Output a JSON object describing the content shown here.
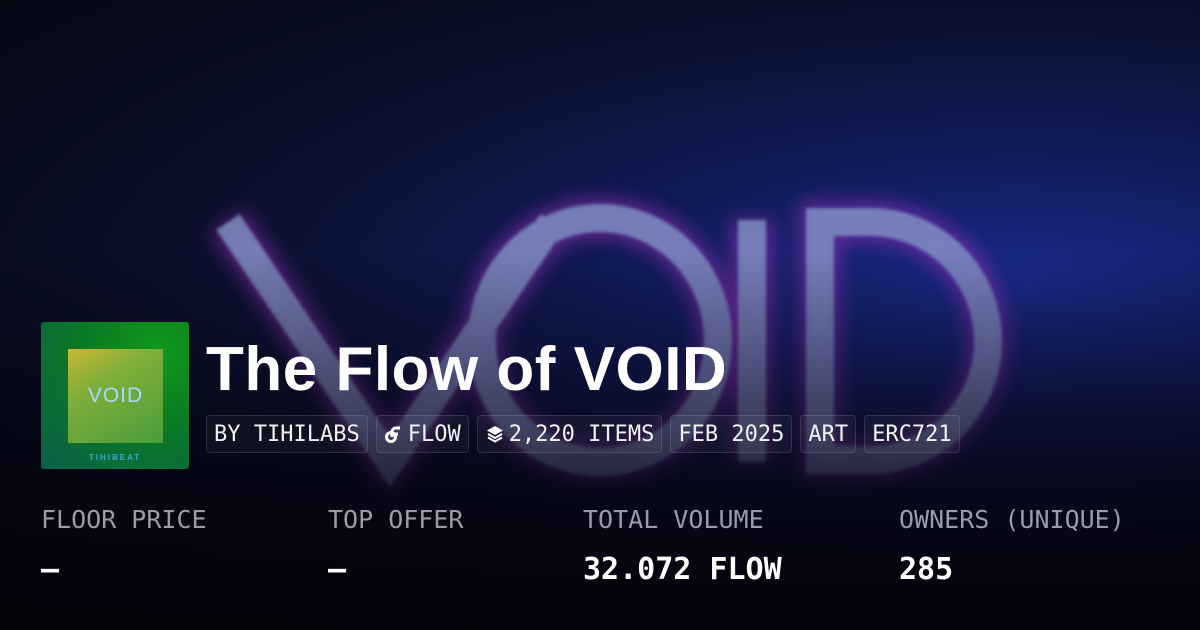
{
  "banner": {
    "background_text": "VOID"
  },
  "collection": {
    "thumbnail": {
      "title": "VOID",
      "brand": "TIHIBEAT"
    },
    "title": "The Flow of VOID",
    "chips": [
      {
        "label": "BY TIHILABS",
        "icon": null
      },
      {
        "label": "FLOW",
        "icon": "flow-logo-icon"
      },
      {
        "label": "2,220 ITEMS",
        "icon": "layers-icon"
      },
      {
        "label": "FEB 2025",
        "icon": null
      },
      {
        "label": "ART",
        "icon": null
      },
      {
        "label": "ERC721",
        "icon": null
      }
    ]
  },
  "stats": [
    {
      "label": "FLOOR PRICE",
      "value": "–"
    },
    {
      "label": "TOP OFFER",
      "value": "–"
    },
    {
      "label": "TOTAL VOLUME",
      "value": "32.072 FLOW"
    },
    {
      "label": "OWNERS (UNIQUE)",
      "value": "285"
    }
  ]
}
